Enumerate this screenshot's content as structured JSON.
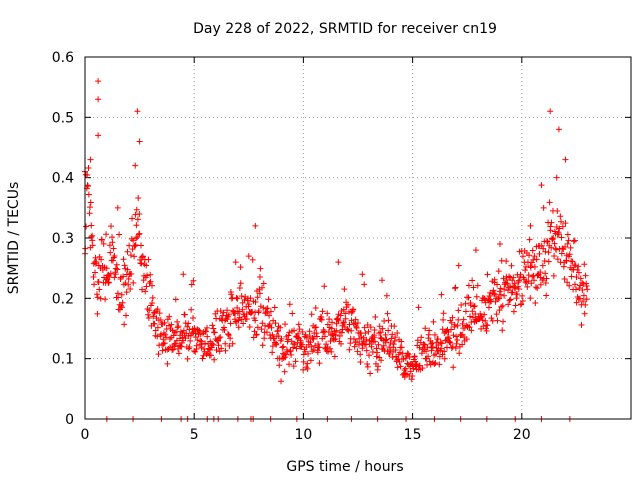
{
  "chart_data": {
    "type": "scatter",
    "title": "Day 228 of 2022, SRMTID for receiver cn19",
    "xlabel": "GPS time / hours",
    "ylabel": "SRMTID / TECUs",
    "xlim": [
      0,
      25
    ],
    "ylim": [
      0,
      0.6
    ],
    "xticks": [
      0,
      5,
      10,
      15,
      20
    ],
    "yticks": [
      0,
      0.1,
      0.2,
      0.3,
      0.4,
      0.5,
      0.6
    ],
    "xtick_labels": [
      "0",
      "5",
      "10",
      "15",
      "20"
    ],
    "ytick_labels": [
      "0",
      "0.1",
      "0.2",
      "0.3",
      "0.4",
      "0.5",
      "0.6"
    ],
    "grid": true,
    "marker": "+",
    "color": "#ff0000",
    "series": [
      {
        "name": "SRMTID",
        "trend": [
          [
            0.0,
            0.33
          ],
          [
            0.1,
            0.38
          ],
          [
            0.2,
            0.34
          ],
          [
            0.4,
            0.26
          ],
          [
            0.6,
            0.23
          ],
          [
            0.8,
            0.27
          ],
          [
            1.0,
            0.24
          ],
          [
            1.3,
            0.27
          ],
          [
            1.5,
            0.23
          ],
          [
            1.8,
            0.21
          ],
          [
            2.0,
            0.24
          ],
          [
            2.2,
            0.28
          ],
          [
            2.4,
            0.33
          ],
          [
            2.6,
            0.26
          ],
          [
            2.8,
            0.22
          ],
          [
            3.0,
            0.19
          ],
          [
            3.2,
            0.16
          ],
          [
            3.4,
            0.15
          ],
          [
            3.7,
            0.14
          ],
          [
            4.0,
            0.13
          ],
          [
            4.3,
            0.13
          ],
          [
            4.6,
            0.14
          ],
          [
            5.0,
            0.13
          ],
          [
            5.5,
            0.12
          ],
          [
            6.0,
            0.14
          ],
          [
            6.5,
            0.15
          ],
          [
            7.0,
            0.17
          ],
          [
            7.3,
            0.19
          ],
          [
            7.6,
            0.17
          ],
          [
            8.0,
            0.18
          ],
          [
            8.5,
            0.15
          ],
          [
            9.0,
            0.11
          ],
          [
            9.5,
            0.13
          ],
          [
            10.0,
            0.12
          ],
          [
            10.5,
            0.13
          ],
          [
            11.0,
            0.14
          ],
          [
            11.5,
            0.15
          ],
          [
            12.0,
            0.16
          ],
          [
            12.5,
            0.13
          ],
          [
            13.0,
            0.12
          ],
          [
            13.5,
            0.13
          ],
          [
            14.0,
            0.12
          ],
          [
            14.5,
            0.1
          ],
          [
            15.0,
            0.09
          ],
          [
            15.5,
            0.11
          ],
          [
            16.0,
            0.12
          ],
          [
            16.5,
            0.13
          ],
          [
            17.0,
            0.14
          ],
          [
            17.5,
            0.16
          ],
          [
            18.0,
            0.18
          ],
          [
            18.5,
            0.19
          ],
          [
            19.0,
            0.2
          ],
          [
            19.5,
            0.22
          ],
          [
            20.0,
            0.23
          ],
          [
            20.5,
            0.25
          ],
          [
            21.0,
            0.27
          ],
          [
            21.3,
            0.29
          ],
          [
            21.6,
            0.3
          ],
          [
            22.0,
            0.27
          ],
          [
            22.4,
            0.24
          ],
          [
            22.7,
            0.22
          ],
          [
            23.0,
            0.2
          ]
        ],
        "spikes": [
          [
            0.25,
            0.43
          ],
          [
            0.6,
            0.56
          ],
          [
            0.6,
            0.53
          ],
          [
            0.6,
            0.47
          ],
          [
            2.4,
            0.51
          ],
          [
            2.5,
            0.46
          ],
          [
            2.3,
            0.42
          ],
          [
            7.8,
            0.32
          ],
          [
            11.6,
            0.26
          ],
          [
            21.3,
            0.51
          ],
          [
            21.7,
            0.48
          ],
          [
            22.0,
            0.43
          ],
          [
            21.6,
            0.4
          ],
          [
            21.0,
            0.35
          ],
          [
            20.4,
            0.32
          ],
          [
            19.0,
            0.29
          ],
          [
            17.9,
            0.28
          ],
          [
            7.5,
            0.27
          ],
          [
            6.9,
            0.26
          ],
          [
            4.5,
            0.24
          ],
          [
            12.7,
            0.24
          ],
          [
            13.6,
            0.23
          ],
          [
            1.5,
            0.35
          ],
          [
            0.0,
            0.41
          ]
        ],
        "zero_points": [
          1.0,
          2.2,
          3.5,
          4.4,
          4.7,
          5.6,
          5.9,
          6.1,
          7.0,
          7.6,
          7.7,
          8.5,
          9.7,
          11.1,
          12.2,
          13.4,
          14.7,
          16.0,
          17.2,
          18.4,
          19.7,
          20.9,
          22.2
        ]
      }
    ]
  }
}
